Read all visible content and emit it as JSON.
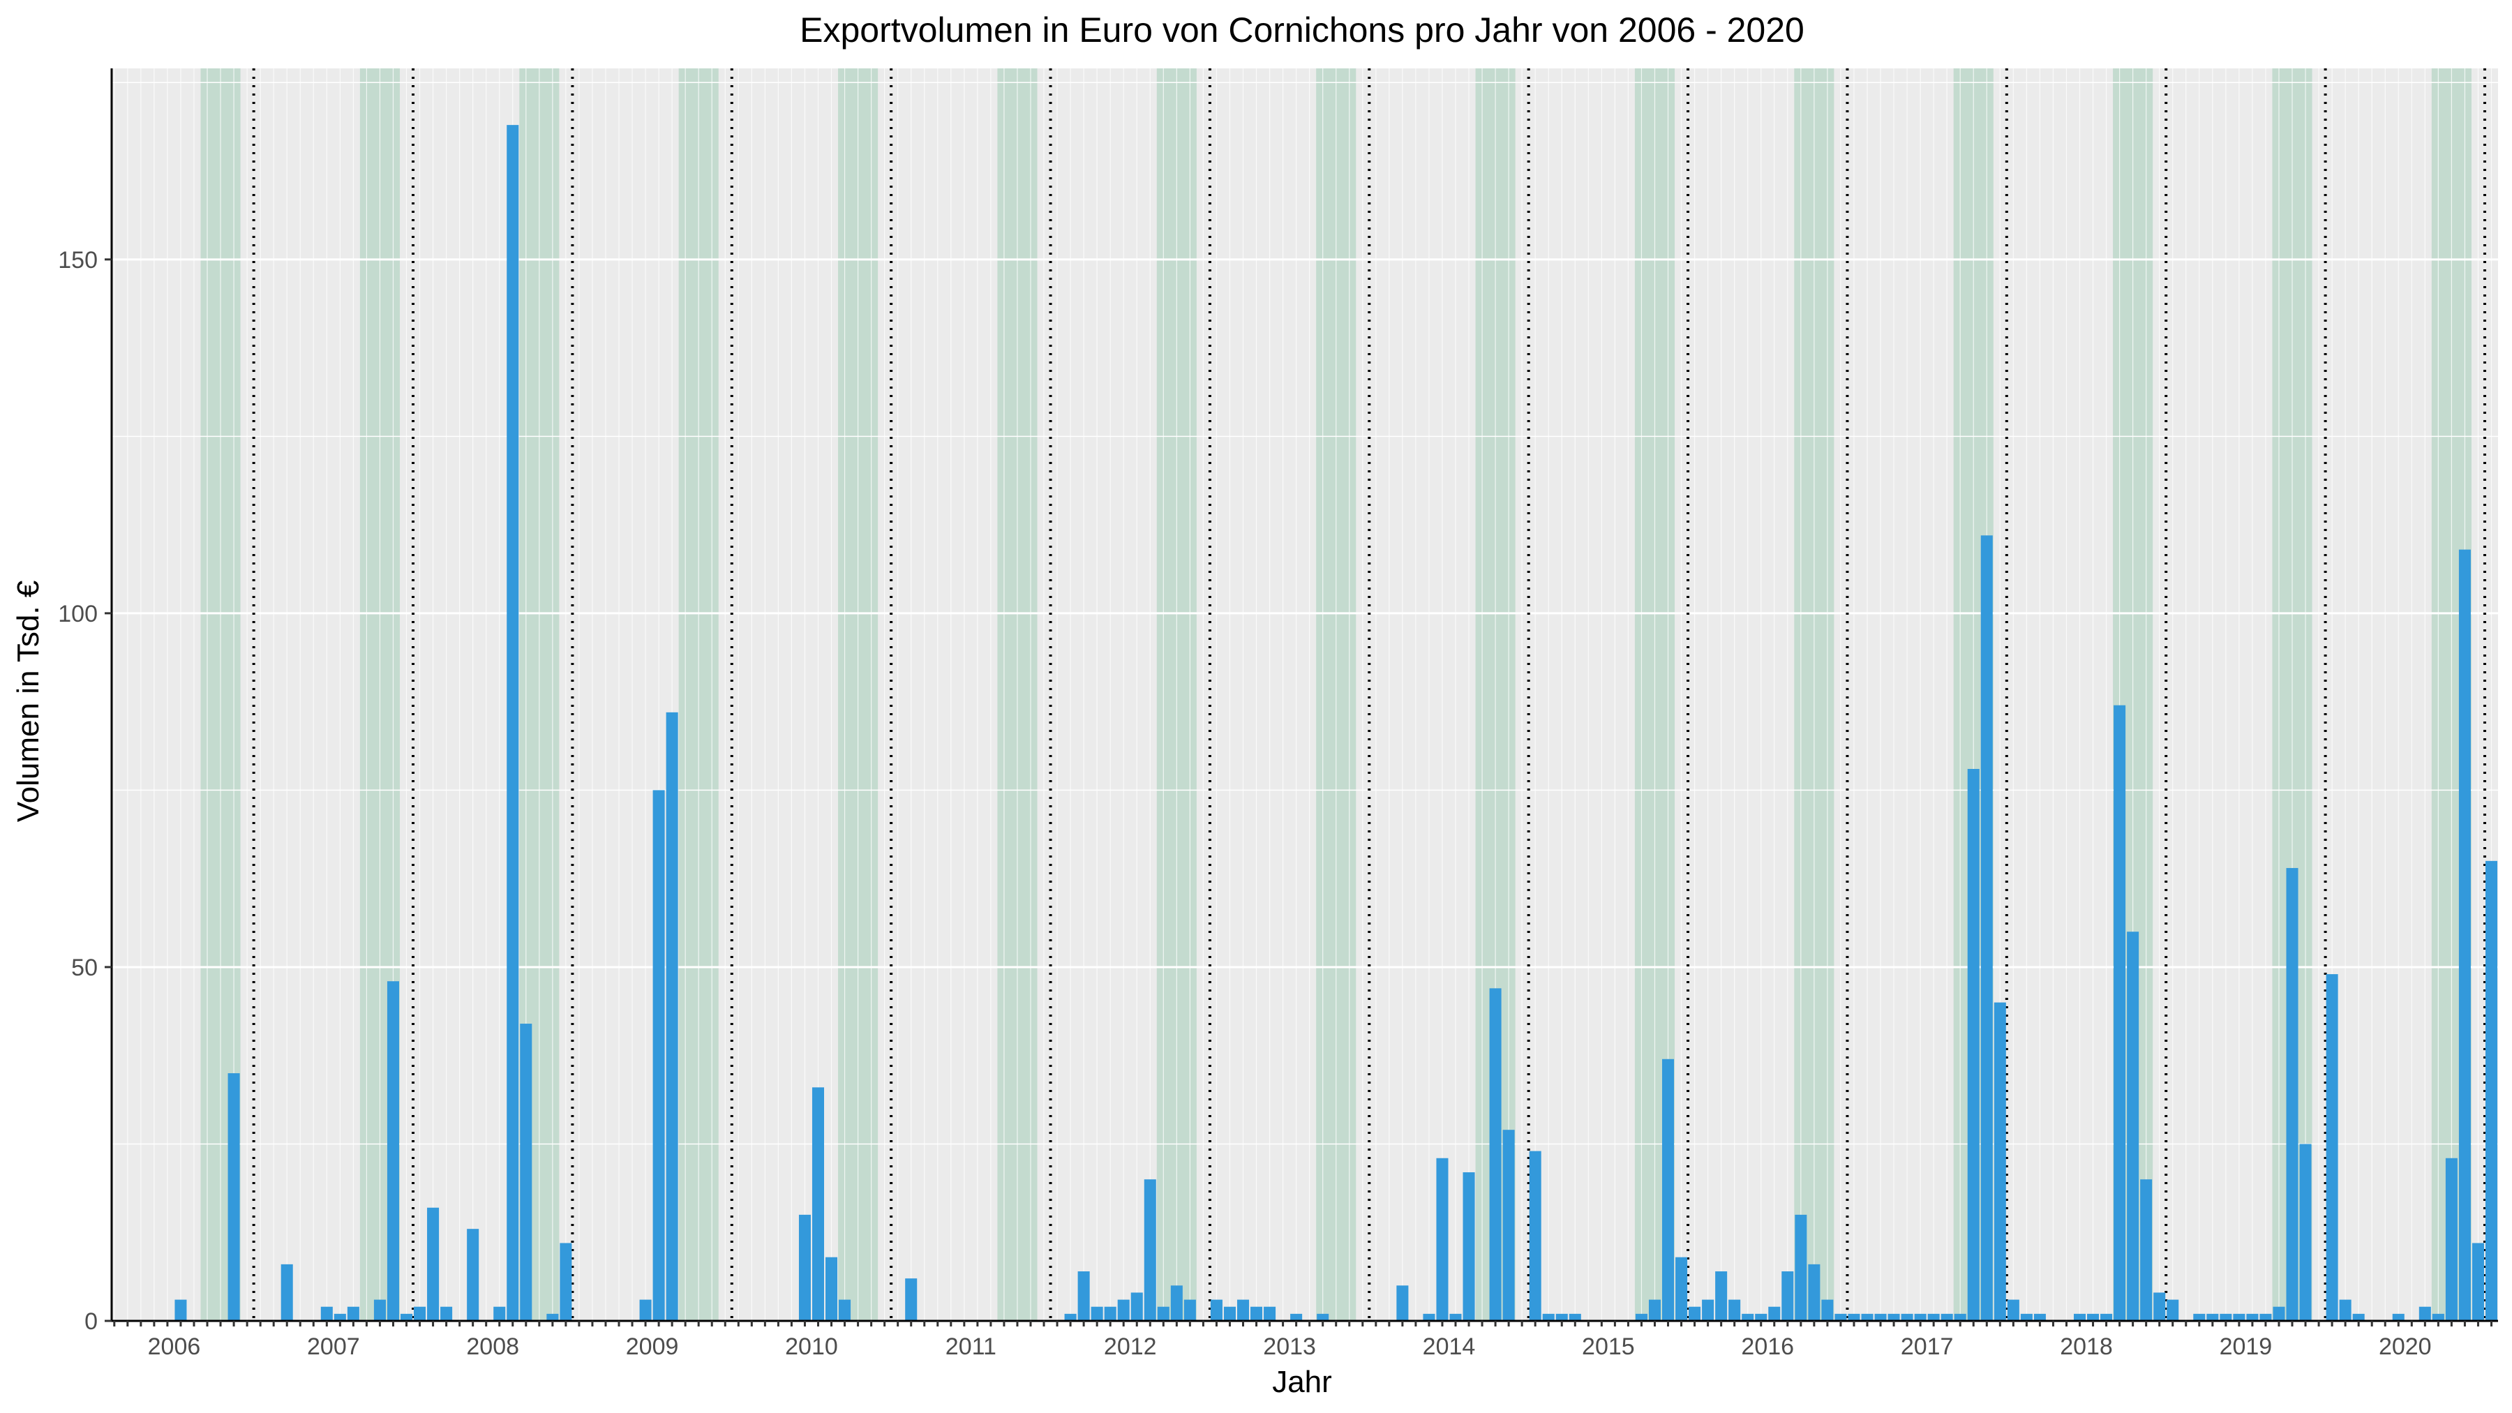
{
  "chart_data": {
    "type": "bar",
    "title": "Exportvolumen in Euro von Cornichons pro Jahr von 2006 - 2020",
    "xlabel": "Jahr",
    "ylabel": "Volumen in Tsd. €",
    "x_ticks": [
      "2006",
      "2007",
      "2008",
      "2009",
      "2010",
      "2011",
      "2012",
      "2013",
      "2014",
      "2015",
      "2016",
      "2017",
      "2018",
      "2019",
      "2020"
    ],
    "y_ticks": [
      0,
      50,
      100,
      150
    ],
    "ylim": [
      0,
      177
    ],
    "grid": true,
    "bar_color": "#3399db",
    "panel_color": "#ebebeb",
    "season_band_color": "#c4dbcf",
    "season_bands": "Apr–Jun of each year (shaded)",
    "year_separators": "dotted vertical lines at each year boundary",
    "series": [
      {
        "values": [
          {
            "x": "2006-01",
            "y": 0
          },
          {
            "x": "2006-02",
            "y": 3
          },
          {
            "x": "2006-03",
            "y": 0
          },
          {
            "x": "2006-04",
            "y": 0
          },
          {
            "x": "2006-05",
            "y": 0
          },
          {
            "x": "2006-06",
            "y": 35
          },
          {
            "x": "2006-07",
            "y": 0
          },
          {
            "x": "2006-08",
            "y": 0
          },
          {
            "x": "2006-09",
            "y": 0
          },
          {
            "x": "2006-10",
            "y": 8
          },
          {
            "x": "2006-11",
            "y": 0
          },
          {
            "x": "2006-12",
            "y": 0
          },
          {
            "x": "2007-01",
            "y": 2
          },
          {
            "x": "2007-02",
            "y": 1
          },
          {
            "x": "2007-03",
            "y": 2
          },
          {
            "x": "2007-04",
            "y": 0
          },
          {
            "x": "2007-05",
            "y": 3
          },
          {
            "x": "2007-06",
            "y": 48
          },
          {
            "x": "2007-07",
            "y": 1
          },
          {
            "x": "2007-08",
            "y": 2
          },
          {
            "x": "2007-09",
            "y": 16
          },
          {
            "x": "2007-10",
            "y": 2
          },
          {
            "x": "2007-11",
            "y": 0
          },
          {
            "x": "2007-12",
            "y": 13
          },
          {
            "x": "2008-01",
            "y": 0
          },
          {
            "x": "2008-02",
            "y": 2
          },
          {
            "x": "2008-03",
            "y": 169
          },
          {
            "x": "2008-04",
            "y": 42
          },
          {
            "x": "2008-05",
            "y": 0
          },
          {
            "x": "2008-06",
            "y": 1
          },
          {
            "x": "2008-07",
            "y": 11
          },
          {
            "x": "2008-08",
            "y": 0
          },
          {
            "x": "2008-09",
            "y": 0
          },
          {
            "x": "2008-10",
            "y": 0
          },
          {
            "x": "2008-11",
            "y": 0
          },
          {
            "x": "2008-12",
            "y": 0
          },
          {
            "x": "2009-01",
            "y": 3
          },
          {
            "x": "2009-02",
            "y": 75
          },
          {
            "x": "2009-03",
            "y": 86
          },
          {
            "x": "2009-04",
            "y": 0
          },
          {
            "x": "2009-05",
            "y": 0
          },
          {
            "x": "2009-06",
            "y": 0
          },
          {
            "x": "2009-07",
            "y": 0
          },
          {
            "x": "2009-08",
            "y": 0
          },
          {
            "x": "2009-09",
            "y": 0
          },
          {
            "x": "2009-10",
            "y": 0
          },
          {
            "x": "2009-11",
            "y": 0
          },
          {
            "x": "2009-12",
            "y": 0
          },
          {
            "x": "2010-01",
            "y": 15
          },
          {
            "x": "2010-02",
            "y": 33
          },
          {
            "x": "2010-03",
            "y": 9
          },
          {
            "x": "2010-04",
            "y": 3
          },
          {
            "x": "2010-05",
            "y": 0
          },
          {
            "x": "2010-06",
            "y": 0
          },
          {
            "x": "2010-07",
            "y": 0
          },
          {
            "x": "2010-08",
            "y": 0
          },
          {
            "x": "2010-09",
            "y": 6
          },
          {
            "x": "2010-10",
            "y": 0
          },
          {
            "x": "2010-11",
            "y": 0
          },
          {
            "x": "2010-12",
            "y": 0
          },
          {
            "x": "2011-01",
            "y": 0
          },
          {
            "x": "2011-02",
            "y": 0
          },
          {
            "x": "2011-03",
            "y": 0
          },
          {
            "x": "2011-04",
            "y": 0
          },
          {
            "x": "2011-05",
            "y": 0
          },
          {
            "x": "2011-06",
            "y": 0
          },
          {
            "x": "2011-07",
            "y": 0
          },
          {
            "x": "2011-08",
            "y": 0
          },
          {
            "x": "2011-09",
            "y": 1
          },
          {
            "x": "2011-10",
            "y": 7
          },
          {
            "x": "2011-11",
            "y": 2
          },
          {
            "x": "2011-12",
            "y": 2
          },
          {
            "x": "2012-01",
            "y": 3
          },
          {
            "x": "2012-02",
            "y": 4
          },
          {
            "x": "2012-03",
            "y": 20
          },
          {
            "x": "2012-04",
            "y": 2
          },
          {
            "x": "2012-05",
            "y": 5
          },
          {
            "x": "2012-06",
            "y": 3
          },
          {
            "x": "2012-07",
            "y": 0
          },
          {
            "x": "2012-08",
            "y": 3
          },
          {
            "x": "2012-09",
            "y": 2
          },
          {
            "x": "2012-10",
            "y": 3
          },
          {
            "x": "2012-11",
            "y": 2
          },
          {
            "x": "2012-12",
            "y": 2
          },
          {
            "x": "2013-01",
            "y": 0
          },
          {
            "x": "2013-02",
            "y": 1
          },
          {
            "x": "2013-03",
            "y": 0
          },
          {
            "x": "2013-04",
            "y": 1
          },
          {
            "x": "2013-05",
            "y": 0
          },
          {
            "x": "2013-06",
            "y": 0
          },
          {
            "x": "2013-07",
            "y": 0
          },
          {
            "x": "2013-08",
            "y": 0
          },
          {
            "x": "2013-09",
            "y": 0
          },
          {
            "x": "2013-10",
            "y": 5
          },
          {
            "x": "2013-11",
            "y": 0
          },
          {
            "x": "2013-12",
            "y": 1
          },
          {
            "x": "2014-01",
            "y": 23
          },
          {
            "x": "2014-02",
            "y": 1
          },
          {
            "x": "2014-03",
            "y": 21
          },
          {
            "x": "2014-04",
            "y": 0
          },
          {
            "x": "2014-05",
            "y": 47
          },
          {
            "x": "2014-06",
            "y": 27
          },
          {
            "x": "2014-07",
            "y": 0
          },
          {
            "x": "2014-08",
            "y": 24
          },
          {
            "x": "2014-09",
            "y": 1
          },
          {
            "x": "2014-10",
            "y": 1
          },
          {
            "x": "2014-11",
            "y": 1
          },
          {
            "x": "2014-12",
            "y": 0
          },
          {
            "x": "2015-01",
            "y": 0
          },
          {
            "x": "2015-02",
            "y": 0
          },
          {
            "x": "2015-03",
            "y": 0
          },
          {
            "x": "2015-04",
            "y": 1
          },
          {
            "x": "2015-05",
            "y": 3
          },
          {
            "x": "2015-06",
            "y": 37
          },
          {
            "x": "2015-07",
            "y": 9
          },
          {
            "x": "2015-08",
            "y": 2
          },
          {
            "x": "2015-09",
            "y": 3
          },
          {
            "x": "2015-10",
            "y": 7
          },
          {
            "x": "2015-11",
            "y": 3
          },
          {
            "x": "2015-12",
            "y": 1
          },
          {
            "x": "2016-01",
            "y": 1
          },
          {
            "x": "2016-02",
            "y": 2
          },
          {
            "x": "2016-03",
            "y": 7
          },
          {
            "x": "2016-04",
            "y": 15
          },
          {
            "x": "2016-05",
            "y": 8
          },
          {
            "x": "2016-06",
            "y": 3
          },
          {
            "x": "2016-07",
            "y": 1
          },
          {
            "x": "2016-08",
            "y": 1
          },
          {
            "x": "2016-09",
            "y": 1
          },
          {
            "x": "2016-10",
            "y": 1
          },
          {
            "x": "2016-11",
            "y": 1
          },
          {
            "x": "2016-12",
            "y": 1
          },
          {
            "x": "2017-01",
            "y": 1
          },
          {
            "x": "2017-02",
            "y": 1
          },
          {
            "x": "2017-03",
            "y": 1
          },
          {
            "x": "2017-04",
            "y": 1
          },
          {
            "x": "2017-05",
            "y": 78
          },
          {
            "x": "2017-06",
            "y": 111
          },
          {
            "x": "2017-07",
            "y": 45
          },
          {
            "x": "2017-08",
            "y": 3
          },
          {
            "x": "2017-09",
            "y": 1
          },
          {
            "x": "2017-10",
            "y": 1
          },
          {
            "x": "2017-11",
            "y": 0
          },
          {
            "x": "2017-12",
            "y": 0
          },
          {
            "x": "2018-01",
            "y": 1
          },
          {
            "x": "2018-02",
            "y": 1
          },
          {
            "x": "2018-03",
            "y": 1
          },
          {
            "x": "2018-04",
            "y": 87
          },
          {
            "x": "2018-05",
            "y": 55
          },
          {
            "x": "2018-06",
            "y": 20
          },
          {
            "x": "2018-07",
            "y": 4
          },
          {
            "x": "2018-08",
            "y": 3
          },
          {
            "x": "2018-09",
            "y": 0
          },
          {
            "x": "2018-10",
            "y": 1
          },
          {
            "x": "2018-11",
            "y": 1
          },
          {
            "x": "2018-12",
            "y": 1
          },
          {
            "x": "2019-01",
            "y": 1
          },
          {
            "x": "2019-02",
            "y": 1
          },
          {
            "x": "2019-03",
            "y": 1
          },
          {
            "x": "2019-04",
            "y": 2
          },
          {
            "x": "2019-05",
            "y": 64
          },
          {
            "x": "2019-06",
            "y": 25
          },
          {
            "x": "2019-07",
            "y": 0
          },
          {
            "x": "2019-08",
            "y": 49
          },
          {
            "x": "2019-09",
            "y": 3
          },
          {
            "x": "2019-10",
            "y": 1
          },
          {
            "x": "2019-11",
            "y": 0
          },
          {
            "x": "2019-12",
            "y": 0
          },
          {
            "x": "2020-01",
            "y": 1
          },
          {
            "x": "2020-02",
            "y": 0
          },
          {
            "x": "2020-03",
            "y": 2
          },
          {
            "x": "2020-04",
            "y": 1
          },
          {
            "x": "2020-05",
            "y": 23
          },
          {
            "x": "2020-06",
            "y": 109
          },
          {
            "x": "2020-07",
            "y": 11
          },
          {
            "x": "2020-08",
            "y": 65
          }
        ]
      }
    ]
  }
}
